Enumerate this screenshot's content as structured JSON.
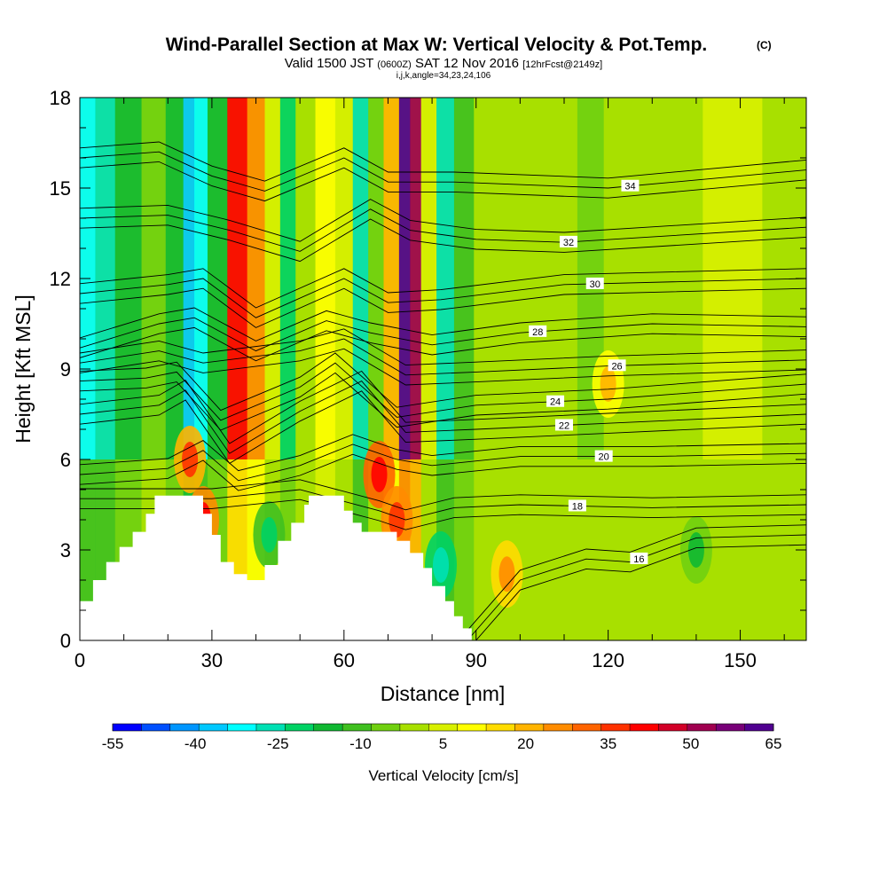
{
  "title": {
    "main": "Wind-Parallel Section at Max W: Vertical Velocity & Pot.Temp.",
    "copyright": "(C)",
    "valid_prefix": "Valid 1500 JST",
    "valid_utc": "(0600Z)",
    "valid_date": "SAT 12 Nov 2016",
    "forecast": "[12hrFcst@2149z]",
    "indices": "i,j,k,angle=34,23,24,106"
  },
  "chart_data": {
    "type": "heatmap",
    "xlabel": "Distance [nm]",
    "ylabel": "Height [Kft MSL]",
    "xlim": [
      0,
      165
    ],
    "ylim": [
      0,
      18
    ],
    "x_ticks": [
      "0",
      "30",
      "60",
      "90",
      "120",
      "150"
    ],
    "y_ticks": [
      "0",
      "3",
      "6",
      "9",
      "12",
      "15",
      "18"
    ],
    "colorbar": {
      "label": "Vertical Velocity [cm/s]",
      "tick_labels": [
        "-55",
        "-40",
        "-25",
        "-10",
        "5",
        "20",
        "35",
        "50",
        "65"
      ],
      "colors": [
        "#0000ff",
        "#0050ff",
        "#0096ff",
        "#00c8ff",
        "#00ffff",
        "#00e0b4",
        "#00d264",
        "#10b832",
        "#40c020",
        "#70d010",
        "#a8e000",
        "#d8f000",
        "#ffff00",
        "#ffdc00",
        "#ffb400",
        "#ff8c00",
        "#ff6400",
        "#ff3200",
        "#ff0000",
        "#d20028",
        "#a00050",
        "#780078",
        "#500090"
      ]
    },
    "velocity_columns": [
      {
        "x": 2,
        "w": -30
      },
      {
        "x": 5,
        "w": -25
      },
      {
        "x": 11,
        "w": -15
      },
      {
        "x": 17,
        "w": -5
      },
      {
        "x": 22,
        "w": -15
      },
      {
        "x": 25,
        "w": -35
      },
      {
        "x": 27,
        "w": -30
      },
      {
        "x": 31,
        "w": -15
      },
      {
        "x": 36,
        "w": 40
      },
      {
        "x": 40,
        "w": 25
      },
      {
        "x": 44,
        "w": 5
      },
      {
        "x": 47,
        "w": -20
      },
      {
        "x": 51,
        "w": 0
      },
      {
        "x": 56,
        "w": 10
      },
      {
        "x": 60,
        "w": 5
      },
      {
        "x": 64,
        "w": -25
      },
      {
        "x": 67,
        "w": -5
      },
      {
        "x": 71,
        "w": 20
      },
      {
        "x": 74,
        "w": 60
      },
      {
        "x": 76,
        "w": 50
      },
      {
        "x": 79,
        "w": 5
      },
      {
        "x": 83,
        "w": -25
      },
      {
        "x": 87,
        "w": -10
      },
      {
        "x": 92,
        "w": 0
      },
      {
        "x": 100,
        "w": 2
      },
      {
        "x": 110,
        "w": 0
      },
      {
        "x": 116,
        "w": -5
      },
      {
        "x": 122,
        "w": 2
      },
      {
        "x": 135,
        "w": 0
      },
      {
        "x": 148,
        "w": 3
      },
      {
        "x": 162,
        "w": 0
      }
    ],
    "low_level_cells": [
      {
        "x": 25,
        "y": 6,
        "w": 22
      },
      {
        "x": 28,
        "y": 4,
        "w": 28
      },
      {
        "x": 68,
        "y": 5.5,
        "w": 30
      },
      {
        "x": 72,
        "y": 4,
        "w": 25
      },
      {
        "x": 97,
        "y": 2.2,
        "w": 15
      },
      {
        "x": 82,
        "y": 2.5,
        "w": -20
      },
      {
        "x": 43,
        "y": 3.5,
        "w": -12
      },
      {
        "x": 120,
        "y": 8.5,
        "w": 10
      },
      {
        "x": 140,
        "y": 3,
        "w": -8
      }
    ],
    "terrain": [
      {
        "x": 0,
        "h": 1.3
      },
      {
        "x": 3,
        "h": 2.0
      },
      {
        "x": 6,
        "h": 2.6
      },
      {
        "x": 9,
        "h": 3.1
      },
      {
        "x": 12,
        "h": 3.6
      },
      {
        "x": 15,
        "h": 4.2
      },
      {
        "x": 17,
        "h": 4.8
      },
      {
        "x": 26,
        "h": 4.8
      },
      {
        "x": 28,
        "h": 4.2
      },
      {
        "x": 30,
        "h": 3.5
      },
      {
        "x": 32,
        "h": 2.6
      },
      {
        "x": 35,
        "h": 2.2
      },
      {
        "x": 38,
        "h": 2.0
      },
      {
        "x": 40,
        "h": 2.0
      },
      {
        "x": 42,
        "h": 2.5
      },
      {
        "x": 45,
        "h": 3.3
      },
      {
        "x": 48,
        "h": 3.9
      },
      {
        "x": 51,
        "h": 4.5
      },
      {
        "x": 52,
        "h": 4.8
      },
      {
        "x": 58,
        "h": 4.8
      },
      {
        "x": 60,
        "h": 4.3
      },
      {
        "x": 62,
        "h": 3.9
      },
      {
        "x": 64,
        "h": 3.6
      },
      {
        "x": 70,
        "h": 3.6
      },
      {
        "x": 72,
        "h": 3.3
      },
      {
        "x": 75,
        "h": 2.9
      },
      {
        "x": 78,
        "h": 2.4
      },
      {
        "x": 80,
        "h": 1.8
      },
      {
        "x": 83,
        "h": 1.3
      },
      {
        "x": 85,
        "h": 0.8
      },
      {
        "x": 87,
        "h": 0.4
      },
      {
        "x": 89,
        "h": 0.0
      },
      {
        "x": 165,
        "h": 0.0
      }
    ],
    "isentropes": [
      {
        "value": 16,
        "label": "16",
        "label_x": 127,
        "shape": [
          [
            88,
            0.0
          ],
          [
            100,
            2.0
          ],
          [
            115,
            2.7
          ],
          [
            125,
            2.6
          ],
          [
            140,
            3.4
          ],
          [
            165,
            3.5
          ]
        ]
      },
      {
        "value": 18,
        "label": "18",
        "label_x": 113,
        "shape": [
          [
            0,
            4.7
          ],
          [
            30,
            4.7
          ],
          [
            50,
            5.0
          ],
          [
            68,
            4.3
          ],
          [
            74,
            4.0
          ],
          [
            85,
            4.4
          ],
          [
            100,
            4.5
          ],
          [
            130,
            4.4
          ],
          [
            165,
            4.5
          ]
        ]
      },
      {
        "value": 20,
        "label": "20",
        "label_x": 119,
        "shape": [
          [
            0,
            5.5
          ],
          [
            20,
            5.7
          ],
          [
            28,
            6.3
          ],
          [
            36,
            5.3
          ],
          [
            50,
            5.8
          ],
          [
            62,
            6.5
          ],
          [
            72,
            6.0
          ],
          [
            80,
            5.8
          ],
          [
            100,
            6.1
          ],
          [
            130,
            6.1
          ],
          [
            165,
            6.2
          ]
        ]
      },
      {
        "value": 22,
        "label": "22",
        "label_x": 110,
        "shape": [
          [
            0,
            7.5
          ],
          [
            18,
            7.8
          ],
          [
            24,
            8.3
          ],
          [
            34,
            6.2
          ],
          [
            50,
            7.6
          ],
          [
            64,
            8.6
          ],
          [
            74,
            6.9
          ],
          [
            90,
            7.0
          ],
          [
            120,
            7.2
          ],
          [
            165,
            7.5
          ]
        ]
      },
      {
        "value": 24,
        "label": "24",
        "label_x": 108,
        "shape": [
          [
            0,
            8.6
          ],
          [
            15,
            8.7
          ],
          [
            22,
            8.9
          ],
          [
            32,
            7.3
          ],
          [
            50,
            8.4
          ],
          [
            58,
            9.2
          ],
          [
            72,
            7.4
          ],
          [
            90,
            7.8
          ],
          [
            120,
            8.0
          ],
          [
            165,
            8.5
          ]
        ]
      },
      {
        "value": 26,
        "label": "26",
        "label_x": 122,
        "shape": [
          [
            0,
            9.2
          ],
          [
            18,
            9.6
          ],
          [
            28,
            9.2
          ],
          [
            50,
            9.6
          ],
          [
            60,
            10.0
          ],
          [
            74,
            8.8
          ],
          [
            90,
            8.9
          ],
          [
            120,
            9.1
          ],
          [
            165,
            9.3
          ]
        ]
      },
      {
        "value": 28,
        "label": "28",
        "label_x": 104,
        "shape": [
          [
            0,
            9.7
          ],
          [
            18,
            10.5
          ],
          [
            26,
            10.7
          ],
          [
            40,
            9.6
          ],
          [
            56,
            10.6
          ],
          [
            66,
            10.2
          ],
          [
            80,
            9.8
          ],
          [
            100,
            10.2
          ],
          [
            130,
            10.5
          ],
          [
            165,
            10.4
          ]
        ]
      },
      {
        "value": 30,
        "label": "30",
        "label_x": 117,
        "shape": [
          [
            0,
            11.5
          ],
          [
            20,
            11.8
          ],
          [
            28,
            12.0
          ],
          [
            40,
            10.7
          ],
          [
            60,
            12.0
          ],
          [
            70,
            11.2
          ],
          [
            82,
            11.3
          ],
          [
            110,
            11.8
          ],
          [
            165,
            12.0
          ]
        ]
      },
      {
        "value": 32,
        "label": "32",
        "label_x": 111,
        "shape": [
          [
            0,
            14.0
          ],
          [
            20,
            14.1
          ],
          [
            34,
            13.6
          ],
          [
            50,
            12.9
          ],
          [
            66,
            14.3
          ],
          [
            75,
            13.6
          ],
          [
            90,
            13.3
          ],
          [
            110,
            13.2
          ],
          [
            165,
            13.7
          ]
        ]
      },
      {
        "value": 34,
        "label": "34",
        "label_x": 125,
        "shape": [
          [
            0,
            16.0
          ],
          [
            18,
            16.2
          ],
          [
            30,
            15.4
          ],
          [
            42,
            14.9
          ],
          [
            60,
            16.0
          ],
          [
            70,
            15.2
          ],
          [
            85,
            15.2
          ],
          [
            120,
            15.0
          ],
          [
            165,
            15.6
          ]
        ]
      }
    ]
  }
}
